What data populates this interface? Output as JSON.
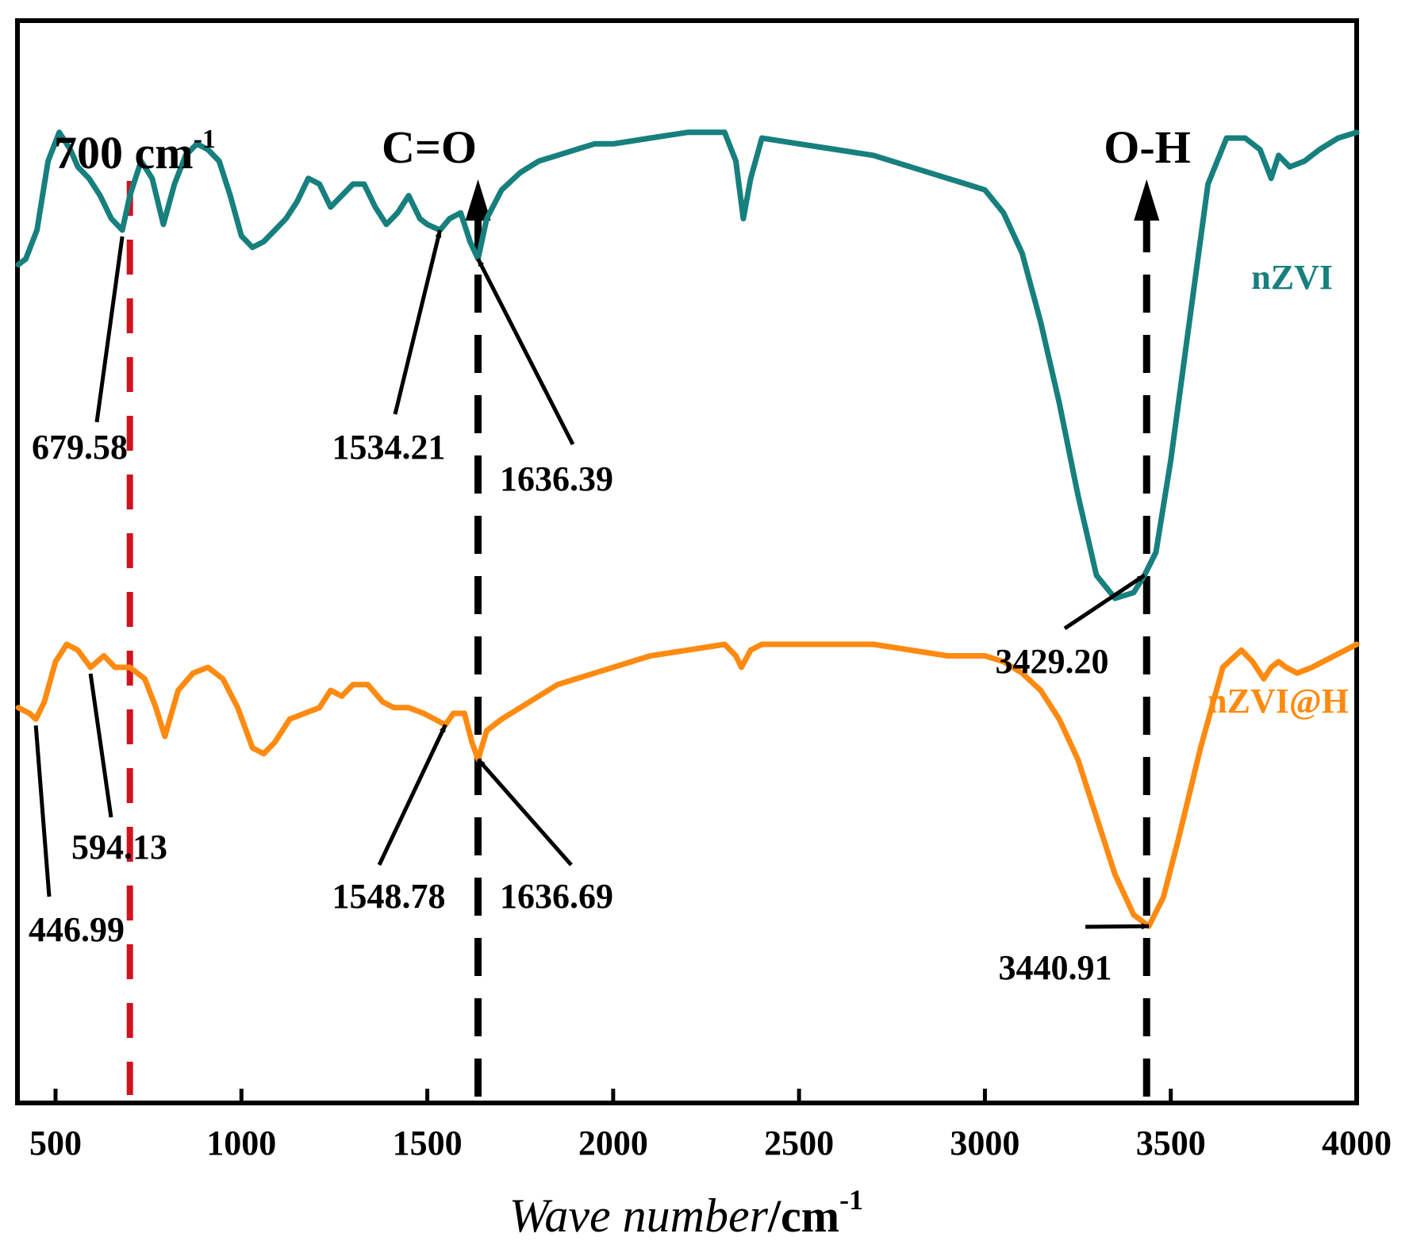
{
  "chart_data": {
    "type": "line",
    "xlabel_italic": "Wave number",
    "xlabel_unit": "/cm",
    "xlabel_sup": "-1",
    "ylabel": "",
    "xlim": [
      400,
      4000
    ],
    "ylim": [
      0,
      100
    ],
    "xticks": [
      500,
      1000,
      1500,
      2000,
      2500,
      3000,
      3500,
      4000
    ],
    "grid": false,
    "colors": {
      "nZVI": "#17807e",
      "nZVI@H": "#ff8a10",
      "reference": "#d0131f",
      "guide": "#000000"
    },
    "series": [
      {
        "name": "nZVI",
        "x": [
          400,
          420,
          450,
          480,
          510,
          540,
          560,
          590,
          620,
          650,
          679.58,
          700,
          730,
          760,
          790,
          820,
          850,
          880,
          910,
          940,
          970,
          1000,
          1030,
          1060,
          1090,
          1120,
          1150,
          1180,
          1210,
          1240,
          1270,
          1300,
          1330,
          1360,
          1390,
          1420,
          1450,
          1480,
          1500,
          1534.21,
          1560,
          1590,
          1615,
          1636.39,
          1660,
          1700,
          1750,
          1800,
          1850,
          1900,
          1950,
          2000,
          2100,
          2200,
          2300,
          2330,
          2350,
          2370,
          2400,
          2500,
          2600,
          2700,
          2800,
          2900,
          2950,
          3000,
          3050,
          3100,
          3150,
          3200,
          3250,
          3300,
          3350,
          3400,
          3429.2,
          3460,
          3500,
          3550,
          3600,
          3650,
          3700,
          3740,
          3770,
          3790,
          3820,
          3860,
          3900,
          3950,
          4000
        ],
        "values": [
          77.0,
          77.5,
          80.0,
          86.0,
          88.5,
          87.0,
          85.5,
          84.5,
          83.0,
          81.0,
          80.0,
          83.0,
          86.0,
          84.5,
          80.5,
          84.0,
          86.5,
          87.5,
          87.0,
          86.0,
          83.0,
          79.5,
          78.5,
          79.0,
          80.0,
          81.0,
          82.5,
          84.5,
          84.0,
          82.0,
          83.0,
          84.0,
          84.0,
          82.0,
          80.5,
          81.5,
          83.0,
          81.0,
          80.5,
          80.0,
          81.0,
          81.5,
          79.0,
          77.5,
          81.0,
          83.5,
          85.0,
          86.0,
          86.5,
          87.0,
          87.5,
          87.5,
          88.0,
          88.5,
          88.5,
          86.0,
          81.0,
          84.5,
          88.0,
          87.5,
          87.0,
          86.5,
          85.5,
          84.5,
          84.0,
          83.5,
          81.5,
          78.0,
          72.0,
          65.0,
          57.0,
          50.0,
          48.0,
          48.5,
          50.0,
          52.0,
          60.0,
          72.0,
          84.0,
          88.0,
          88.0,
          87.0,
          84.5,
          86.5,
          85.5,
          86.0,
          87.0,
          88.0,
          88.5
        ]
      },
      {
        "name": "nZVI@H",
        "x": [
          400,
          430,
          446.99,
          470,
          500,
          530,
          560,
          594.13,
          630,
          660,
          700,
          740,
          770,
          794,
          830,
          870,
          910,
          950,
          990,
          1030,
          1060,
          1090,
          1130,
          1170,
          1210,
          1240,
          1270,
          1300,
          1340,
          1380,
          1410,
          1450,
          1490,
          1520,
          1548.78,
          1570,
          1600,
          1620,
          1636.69,
          1660,
          1700,
          1750,
          1800,
          1850,
          1900,
          1950,
          2000,
          2100,
          2200,
          2300,
          2330,
          2345,
          2370,
          2400,
          2500,
          2600,
          2700,
          2800,
          2900,
          2950,
          3000,
          3050,
          3100,
          3150,
          3200,
          3250,
          3300,
          3350,
          3400,
          3440.91,
          3480,
          3520,
          3580,
          3640,
          3690,
          3720,
          3750,
          3770,
          3790,
          3810,
          3840,
          3880,
          3940,
          4000
        ],
        "values": [
          38.5,
          38.0,
          37.5,
          39.0,
          42.5,
          44.0,
          43.5,
          42.0,
          43.0,
          42.0,
          42.0,
          41.0,
          38.5,
          36.0,
          40.0,
          41.5,
          42.0,
          41.0,
          38.5,
          35.0,
          34.5,
          35.5,
          37.5,
          38.0,
          38.5,
          40.0,
          39.5,
          40.5,
          40.5,
          39.0,
          38.5,
          38.5,
          38.0,
          37.5,
          37.0,
          38.0,
          38.0,
          35.5,
          34.0,
          36.5,
          37.5,
          38.5,
          39.5,
          40.5,
          41.0,
          41.5,
          42.0,
          43.0,
          43.5,
          44.0,
          43.0,
          42.0,
          43.5,
          44.0,
          44.0,
          44.0,
          44.0,
          43.5,
          43.0,
          43.0,
          43.0,
          42.5,
          41.5,
          40.0,
          37.5,
          34.0,
          29.0,
          24.0,
          20.5,
          19.5,
          22.0,
          27.0,
          35.0,
          42.0,
          43.5,
          42.5,
          41.0,
          42.0,
          42.5,
          42.0,
          41.5,
          42.0,
          43.0,
          44.0
        ]
      }
    ],
    "annotations": [
      {
        "id": "reference",
        "text": "700 cm",
        "sup": "-1",
        "x": 700
      },
      {
        "id": "co",
        "text": "C=O",
        "x": 1636.5
      },
      {
        "id": "oh",
        "text": "O-H",
        "x": 3435
      }
    ],
    "peaks": [
      {
        "series": "nZVI",
        "label": "679.58",
        "x": 679.58
      },
      {
        "series": "nZVI",
        "label": "1534.21",
        "x": 1534.21
      },
      {
        "series": "nZVI",
        "label": "1636.39",
        "x": 1636.39
      },
      {
        "series": "nZVI",
        "label": "3429.20",
        "x": 3429.2
      },
      {
        "series": "nZVI@H",
        "label": "446.99",
        "x": 446.99
      },
      {
        "series": "nZVI@H",
        "label": "594.13",
        "x": 594.13
      },
      {
        "series": "nZVI@H",
        "label": "1548.78",
        "x": 1548.78
      },
      {
        "series": "nZVI@H",
        "label": "1636.69",
        "x": 1636.69
      },
      {
        "series": "nZVI@H",
        "label": "3440.91",
        "x": 3440.91
      }
    ]
  }
}
